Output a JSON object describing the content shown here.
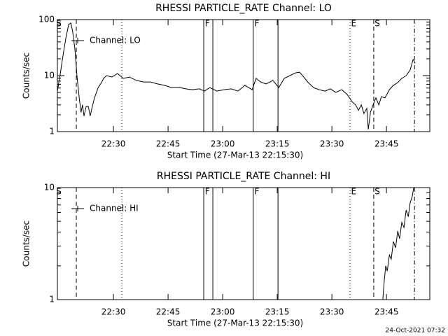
{
  "chart_data": [
    {
      "type": "line",
      "title": "RHESSI PARTICLE_RATE Channel: LO",
      "xlabel": "Start Time (27-Mar-13 22:15:30)",
      "ylabel": "Counts/sec",
      "log_y": true,
      "ylim": [
        1,
        100
      ],
      "yticks": [
        1,
        10,
        100
      ],
      "xlim": [
        1334.6,
        1436.9
      ],
      "xticks": [
        {
          "value": 1350,
          "label": "22:30"
        },
        {
          "value": 1365,
          "label": "22:45"
        },
        {
          "value": 1380,
          "label": "23:00"
        },
        {
          "value": 1395,
          "label": "23:15"
        },
        {
          "value": 1410,
          "label": "23:30"
        },
        {
          "value": 1425,
          "label": "23:45"
        }
      ],
      "markers": [
        {
          "x": 1339.8,
          "style": "dashed"
        },
        {
          "x": 1352.3,
          "style": "dotted"
        },
        {
          "x": 1374.8,
          "style": "solid"
        },
        {
          "x": 1377.3,
          "style": "solid"
        },
        {
          "x": 1388.4,
          "style": "solid"
        },
        {
          "x": 1395.2,
          "style": "solid"
        },
        {
          "x": 1415.0,
          "style": "dotted"
        },
        {
          "x": 1421.5,
          "style": "dashed"
        },
        {
          "x": 1432.7,
          "style": "dashdot"
        }
      ],
      "flags": [
        {
          "text": "S",
          "x": 1335.0
        },
        {
          "text": "F",
          "x": 1375.8
        },
        {
          "text": "F",
          "x": 1389.4
        },
        {
          "text": "E",
          "x": 1416.0
        },
        {
          "text": "S",
          "x": 1422.5
        }
      ],
      "x": [
        1334.6,
        1335.4,
        1336.1,
        1336.9,
        1337.7,
        1338.3,
        1338.8,
        1339.4,
        1340.0,
        1340.6,
        1341.1,
        1341.5,
        1341.9,
        1342.5,
        1343.1,
        1343.6,
        1344.2,
        1344.8,
        1345.8,
        1346.7,
        1347.3,
        1348.1,
        1349.6,
        1351.1,
        1352.7,
        1354.4,
        1356.3,
        1358.3,
        1360.2,
        1362.1,
        1364.0,
        1366.0,
        1367.9,
        1369.8,
        1371.7,
        1373.6,
        1375.0,
        1376.5,
        1378.4,
        1380.4,
        1382.3,
        1384.2,
        1386.1,
        1388.1,
        1389.2,
        1390.4,
        1391.9,
        1393.8,
        1395.4,
        1396.9,
        1398.5,
        1400.0,
        1401.1,
        1402.3,
        1403.5,
        1405.0,
        1406.5,
        1408.1,
        1409.6,
        1411.1,
        1412.7,
        1414.2,
        1415.6,
        1416.5,
        1417.3,
        1418.1,
        1418.8,
        1419.6,
        1420.0,
        1420.6,
        1421.3,
        1422.1,
        1422.9,
        1423.6,
        1424.6,
        1425.8,
        1426.9,
        1428.1,
        1429.2,
        1430.4,
        1431.5,
        1432.3,
        1432.9
      ],
      "series": [
        {
          "name": "Channel: LO",
          "color": "#000000",
          "values": [
            5.3,
            10.9,
            22,
            46,
            82,
            87,
            61,
            30,
            9.4,
            4.0,
            2.2,
            3.0,
            1.9,
            2.8,
            2.8,
            1.9,
            2.8,
            4.0,
            6.1,
            7.5,
            8.9,
            10,
            9.4,
            10.9,
            8.9,
            9.4,
            8.2,
            7.7,
            7.7,
            7.1,
            6.7,
            6.1,
            6.2,
            5.8,
            5.6,
            5.8,
            5.3,
            6.1,
            5.3,
            5.6,
            5.8,
            5.3,
            6.7,
            5.6,
            8.9,
            7.7,
            7.1,
            8.2,
            6.1,
            8.9,
            10,
            11.2,
            11.5,
            9.4,
            7.5,
            6.1,
            5.6,
            5.3,
            5.8,
            5.0,
            5.6,
            4.6,
            3.4,
            3.0,
            2.4,
            3.0,
            2.1,
            2.6,
            1.1,
            2.2,
            3.0,
            4.0,
            3.0,
            4.2,
            4.0,
            5.6,
            6.7,
            7.5,
            8.9,
            10,
            12.6,
            19.4,
            16.7
          ]
        }
      ]
    },
    {
      "type": "line",
      "title": "RHESSI PARTICLE_RATE Channel: HI",
      "xlabel": "Start Time (27-Mar-13 22:15:30)",
      "ylabel": "Counts/sec",
      "log_y": true,
      "ylim": [
        1,
        10
      ],
      "yticks": [
        1,
        10
      ],
      "xlim": [
        1334.6,
        1436.9
      ],
      "xticks": [
        {
          "value": 1350,
          "label": "22:30"
        },
        {
          "value": 1365,
          "label": "22:45"
        },
        {
          "value": 1380,
          "label": "23:00"
        },
        {
          "value": 1395,
          "label": "23:15"
        },
        {
          "value": 1410,
          "label": "23:30"
        },
        {
          "value": 1425,
          "label": "23:45"
        }
      ],
      "markers": [
        {
          "x": 1339.8,
          "style": "dashed"
        },
        {
          "x": 1352.3,
          "style": "dotted"
        },
        {
          "x": 1374.8,
          "style": "solid"
        },
        {
          "x": 1377.3,
          "style": "solid"
        },
        {
          "x": 1388.4,
          "style": "solid"
        },
        {
          "x": 1395.2,
          "style": "solid"
        },
        {
          "x": 1415.0,
          "style": "dotted"
        },
        {
          "x": 1421.5,
          "style": "dashed"
        },
        {
          "x": 1432.7,
          "style": "dashdot"
        }
      ],
      "flags": [
        {
          "text": "S",
          "x": 1335.0
        },
        {
          "text": "F",
          "x": 1375.8
        },
        {
          "text": "F",
          "x": 1389.4
        },
        {
          "text": "E",
          "x": 1416.0
        },
        {
          "text": "S",
          "x": 1422.5
        }
      ],
      "x": [
        1424.0,
        1424.4,
        1424.8,
        1425.2,
        1425.8,
        1426.3,
        1426.9,
        1427.5,
        1428.1,
        1428.6,
        1429.2,
        1429.8,
        1430.4,
        1431.0,
        1431.5,
        1432.1,
        1432.5
      ],
      "series": [
        {
          "name": "Channel: HI",
          "color": "#000000",
          "values": [
            1.0,
            1.5,
            2.0,
            1.8,
            2.5,
            2.3,
            3.3,
            2.9,
            4.1,
            3.5,
            4.9,
            4.4,
            6.3,
            5.5,
            7.3,
            8.4,
            10
          ]
        }
      ]
    }
  ],
  "footer": "24-Oct-2021 07:32"
}
